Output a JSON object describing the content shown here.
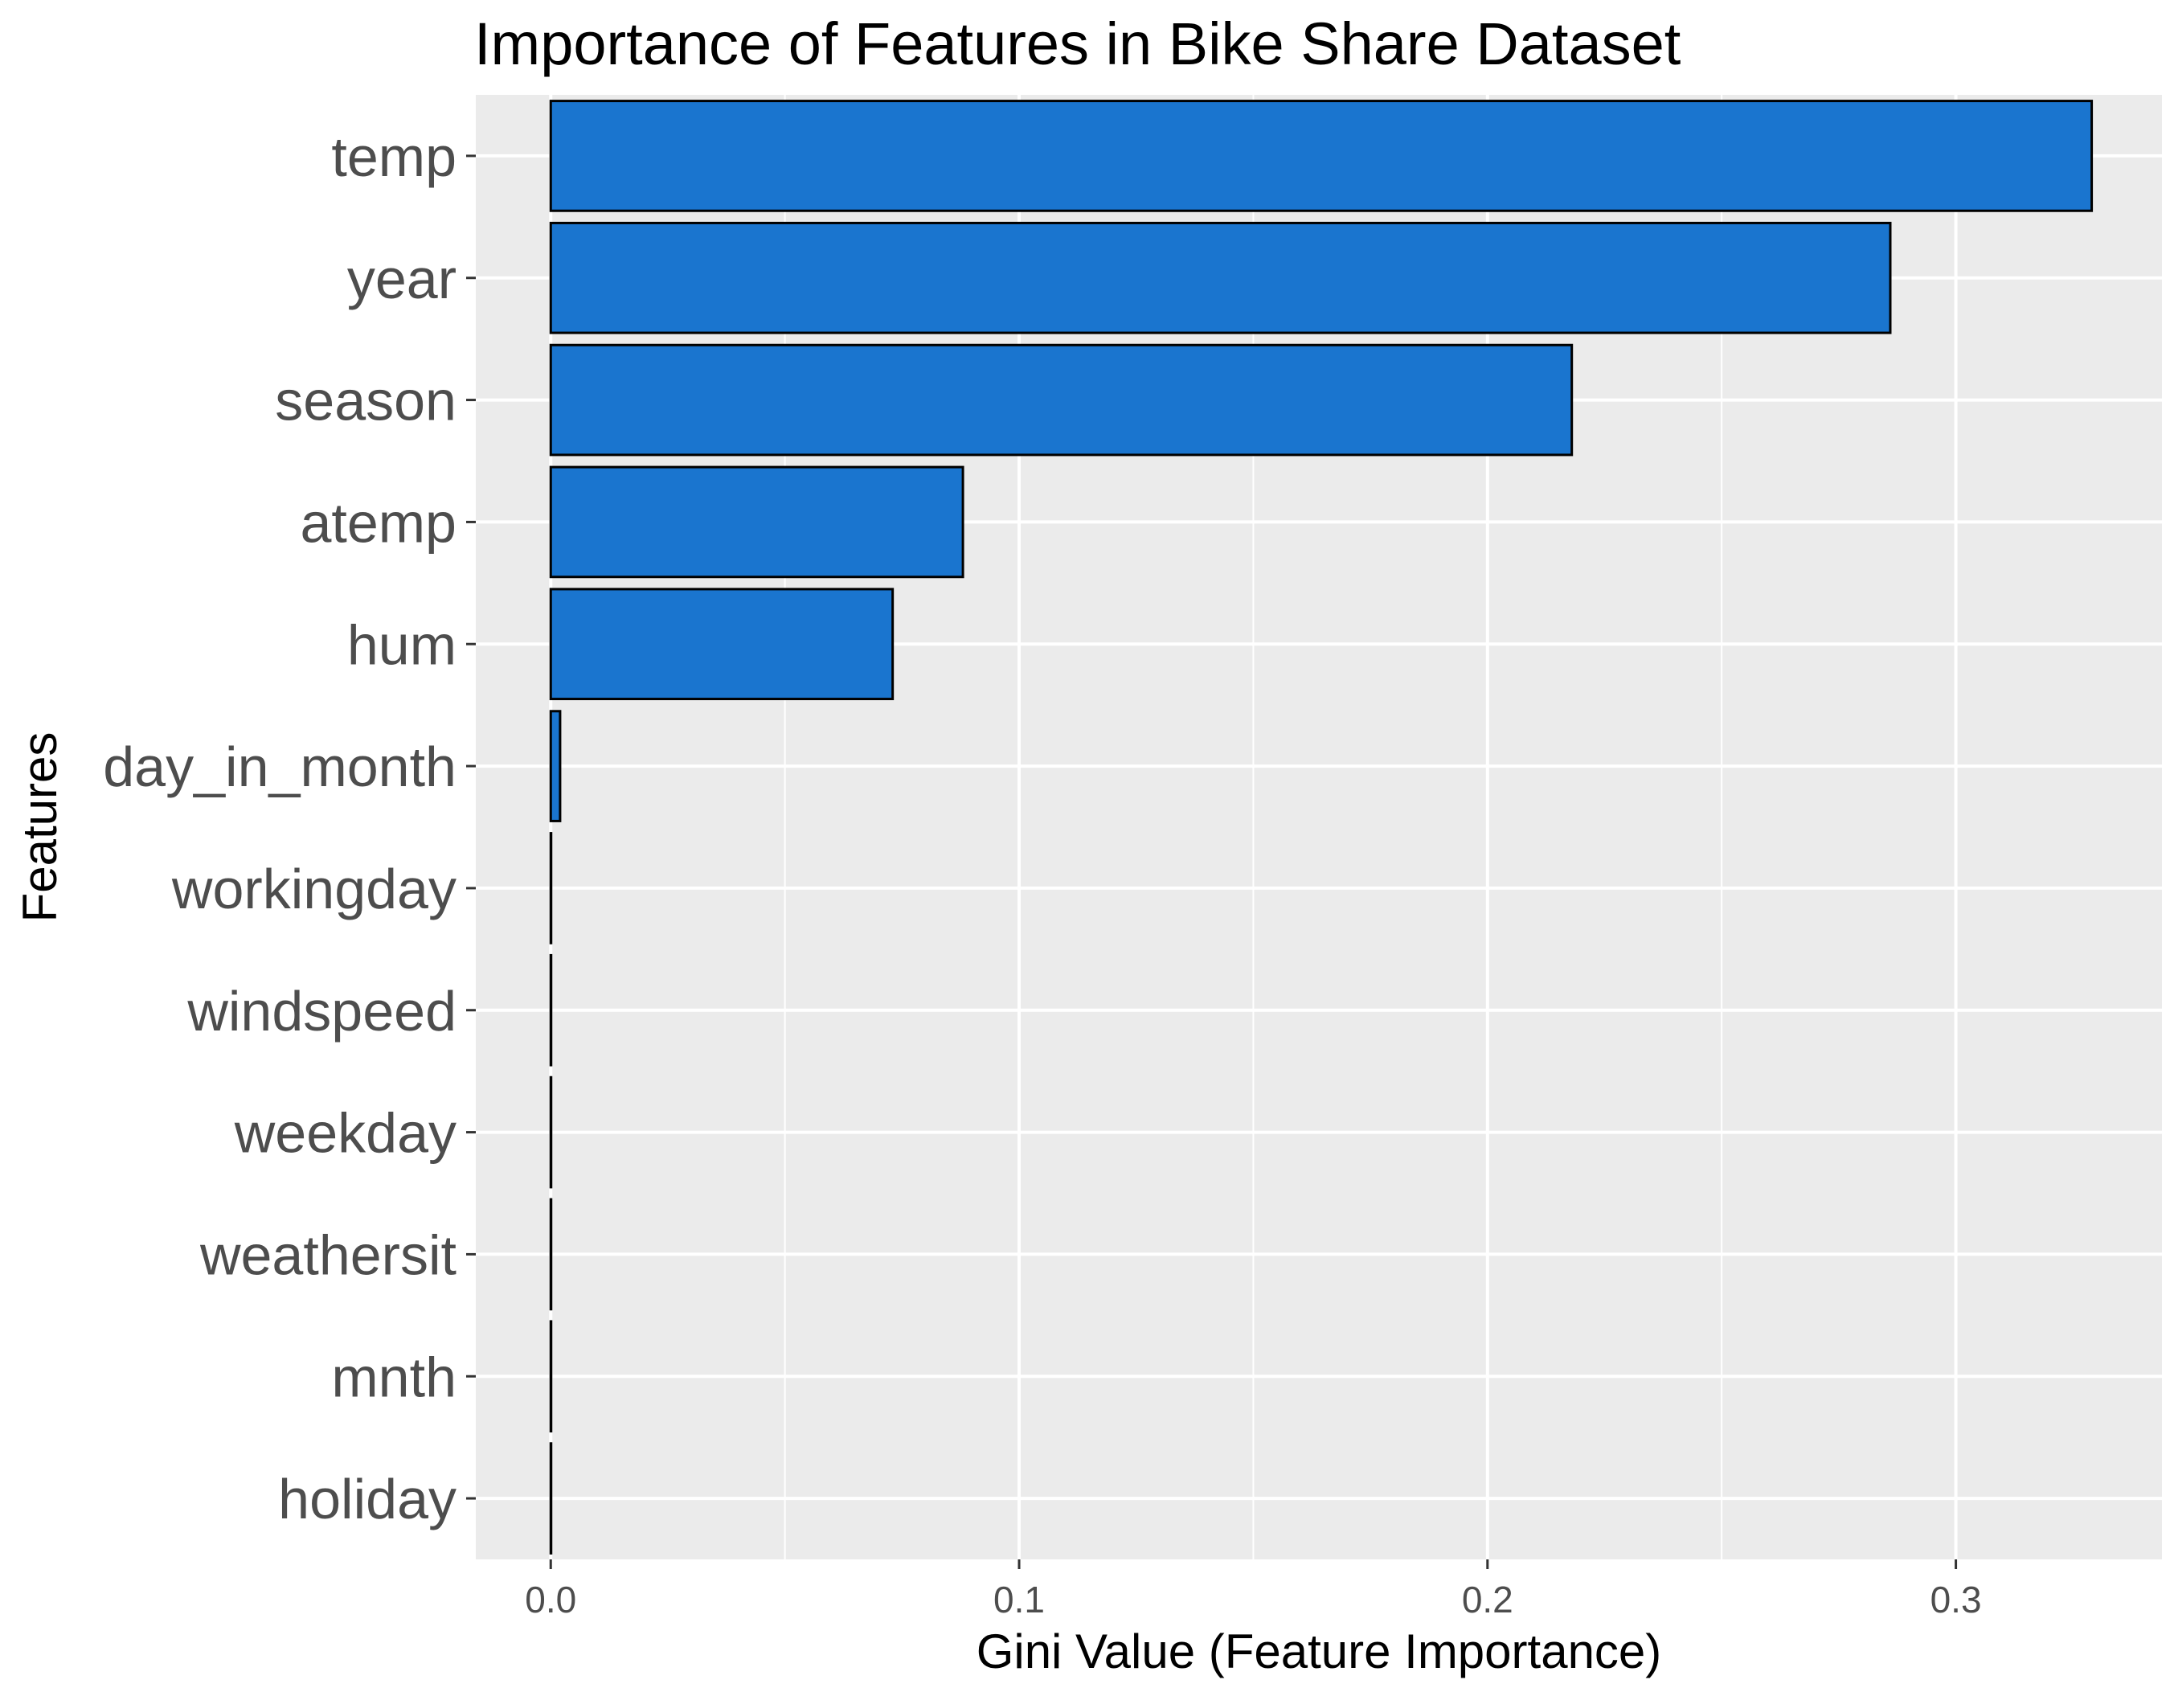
{
  "chart_data": {
    "type": "bar",
    "orientation": "horizontal",
    "title": "Importance of Features in Bike Share Dataset",
    "xlabel": "Gini Value (Feature Importance)",
    "ylabel": "Features",
    "categories": [
      "temp",
      "year",
      "season",
      "atemp",
      "hum",
      "day_in_month",
      "workingday",
      "windspeed",
      "weekday",
      "weathersit",
      "mnth",
      "holiday"
    ],
    "values": [
      0.329,
      0.286,
      0.218,
      0.088,
      0.073,
      0.002,
      0.0,
      0.0,
      0.0,
      0.0,
      0.0,
      0.0
    ],
    "x_ticks": [
      0.0,
      0.1,
      0.2,
      0.3
    ],
    "x_tick_labels": [
      "0.0",
      "0.1",
      "0.2",
      "0.3"
    ],
    "xlim": [
      -0.016,
      0.344
    ],
    "grid": true,
    "colors": {
      "bar_fill": "#1a75cf",
      "bar_stroke": "#000000",
      "panel": "#ebebeb",
      "grid": "#ffffff"
    }
  }
}
